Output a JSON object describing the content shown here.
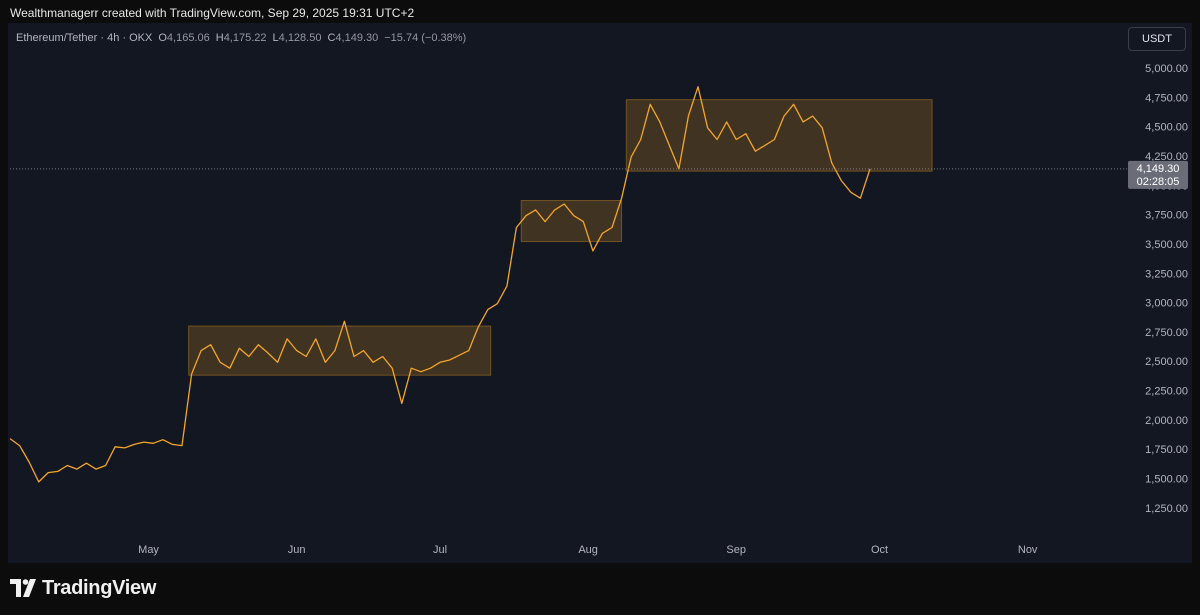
{
  "header": {
    "credit": "Wealthmanagerr created with TradingView.com, Sep 29, 2025 19:31 UTC+2",
    "symbol": "Ethereum/Tether · 4h · OKX",
    "ohlc": [
      {
        "key": "O",
        "text": "4,165.06"
      },
      {
        "key": "H",
        "text": "4,175.22"
      },
      {
        "key": "L",
        "text": "4,128.50"
      },
      {
        "key": "C",
        "text": "4,149.30"
      }
    ],
    "change": "−15.74 (−0.38%)",
    "currency": "USDT"
  },
  "footer": {
    "brand": "TradingView"
  },
  "chart_data": {
    "type": "line",
    "series": [
      {
        "name": "Ethereum/Tether",
        "color": "#f5a623",
        "values": [
          1850,
          1790,
          1650,
          1480,
          1560,
          1570,
          1620,
          1590,
          1640,
          1590,
          1620,
          1780,
          1770,
          1800,
          1820,
          1810,
          1840,
          1800,
          1790,
          2400,
          2600,
          2650,
          2500,
          2450,
          2620,
          2550,
          2650,
          2580,
          2500,
          2700,
          2600,
          2550,
          2700,
          2500,
          2600,
          2850,
          2550,
          2600,
          2500,
          2550,
          2450,
          2150,
          2450,
          2420,
          2450,
          2500,
          2520,
          2560,
          2600,
          2800,
          2950,
          3000,
          3150,
          3650,
          3750,
          3800,
          3700,
          3800,
          3850,
          3750,
          3700,
          3450,
          3600,
          3650,
          3900,
          4250,
          4400,
          4700,
          4550,
          4350,
          4150,
          4600,
          4850,
          4500,
          4400,
          4550,
          4400,
          4450,
          4300,
          4350,
          4400,
          4600,
          4700,
          4550,
          4600,
          4500,
          4200,
          4050,
          3950,
          3900,
          4149.3
        ]
      }
    ],
    "xlim": [
      0,
      117
    ],
    "xticks": [
      {
        "value": 14.5,
        "label": "May"
      },
      {
        "value": 30,
        "label": "Jun"
      },
      {
        "value": 45,
        "label": "Jul"
      },
      {
        "value": 60.5,
        "label": "Aug"
      },
      {
        "value": 76,
        "label": "Sep"
      },
      {
        "value": 91,
        "label": "Oct"
      },
      {
        "value": 106.5,
        "label": "Nov"
      }
    ],
    "ylim": [
      985,
      5385
    ],
    "yticks": [
      {
        "value": 1250,
        "label": "1,250.00"
      },
      {
        "value": 1500,
        "label": "1,500.00"
      },
      {
        "value": 1750,
        "label": "1,750.00"
      },
      {
        "value": 2000,
        "label": "2,000.00"
      },
      {
        "value": 2250,
        "label": "2,250.00"
      },
      {
        "value": 2500,
        "label": "2,500.00"
      },
      {
        "value": 2750,
        "label": "2,750.00"
      },
      {
        "value": 3000,
        "label": "3,000.00"
      },
      {
        "value": 3250,
        "label": "3,250.00"
      },
      {
        "value": 3500,
        "label": "3,500.00"
      },
      {
        "value": 3750,
        "label": "3,750.00"
      },
      {
        "value": 4000,
        "label": "4,000.00"
      },
      {
        "value": 4250,
        "label": "4,250.00"
      },
      {
        "value": 4500,
        "label": "4,500.00"
      },
      {
        "value": 4750,
        "label": "4,750.00"
      },
      {
        "value": 5000,
        "label": "5,000.00"
      }
    ],
    "grid": false,
    "zones": [
      {
        "x": [
          18.7,
          50.3
        ],
        "y": [
          2390,
          2810
        ],
        "color": "#f5a623"
      },
      {
        "x": [
          53.5,
          64
        ],
        "y": [
          3530,
          3880
        ],
        "color": "#f5a623"
      },
      {
        "x": [
          64.5,
          96.5
        ],
        "y": [
          4130,
          4740
        ],
        "color": "#f5a623"
      }
    ],
    "last_price": {
      "value": 4149.3,
      "label": "4,149.30",
      "countdown": "02:28:05",
      "color": "#6a6d78"
    }
  }
}
